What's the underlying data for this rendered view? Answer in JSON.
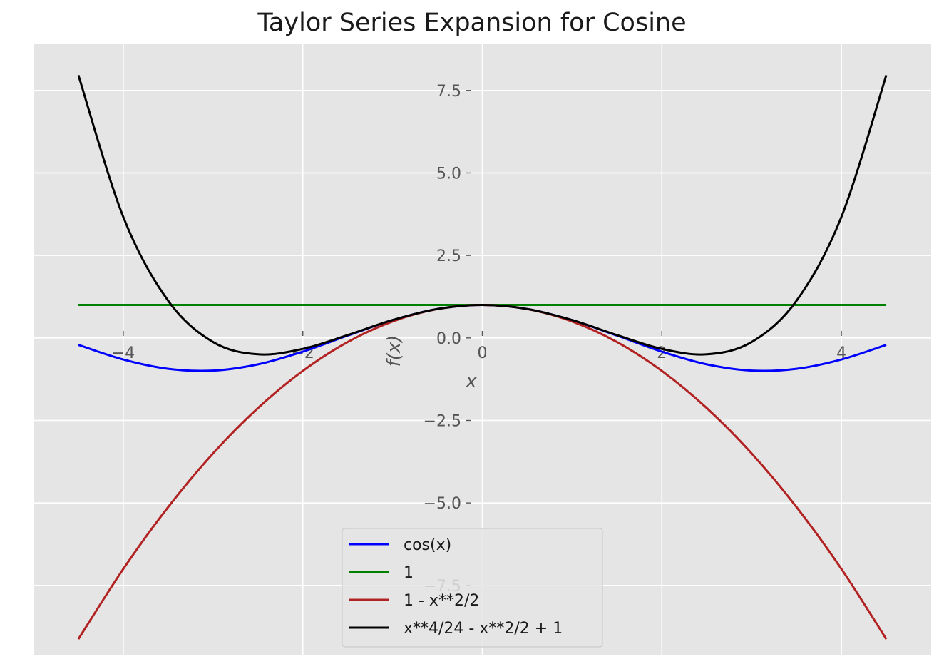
{
  "chart_data": {
    "type": "line",
    "title": "Taylor Series Expansion for Cosine",
    "xlabel": "x",
    "ylabel": "f(x)",
    "xlim": [
      -5.0,
      5.0
    ],
    "ylim": [
      -9.6,
      8.9
    ],
    "x_ticks": [
      {
        "value": -4,
        "label": "−4"
      },
      {
        "value": -2,
        "label": "−2"
      },
      {
        "value": 0,
        "label": "0"
      },
      {
        "value": 2,
        "label": "2"
      },
      {
        "value": 4,
        "label": "4"
      }
    ],
    "y_ticks": [
      {
        "value": 7.5,
        "label": "7.5"
      },
      {
        "value": 5.0,
        "label": "5.0"
      },
      {
        "value": 2.5,
        "label": "2.5"
      },
      {
        "value": 0.0,
        "label": "0.0"
      },
      {
        "value": -2.5,
        "label": "−2.5"
      },
      {
        "value": -5.0,
        "label": "−5.0"
      },
      {
        "value": -7.5,
        "label": "−7.5"
      }
    ],
    "grid": true,
    "legend_position": "bottom-center",
    "x": [
      -4.5,
      -4.0,
      -3.5,
      -3.0,
      -2.5,
      -2.0,
      -1.5,
      -1.0,
      -0.5,
      0.0,
      0.5,
      1.0,
      1.5,
      2.0,
      2.5,
      3.0,
      3.5,
      4.0,
      4.5
    ],
    "series": [
      {
        "name": "cos(x)",
        "color": "#0000ff",
        "values": [
          -0.211,
          -0.654,
          -0.936,
          -0.99,
          -0.801,
          -0.416,
          0.071,
          0.54,
          0.878,
          1.0,
          0.878,
          0.54,
          0.071,
          -0.416,
          -0.801,
          -0.99,
          -0.936,
          -0.654,
          -0.211
        ]
      },
      {
        "name": "1",
        "color": "#008000",
        "values": [
          1,
          1,
          1,
          1,
          1,
          1,
          1,
          1,
          1,
          1,
          1,
          1,
          1,
          1,
          1,
          1,
          1,
          1,
          1
        ]
      },
      {
        "name": "1 - x**2/2",
        "color": "#b22222",
        "values": [
          -9.125,
          -7.0,
          -5.125,
          -3.5,
          -2.125,
          -1.0,
          -0.125,
          0.5,
          0.875,
          1.0,
          0.875,
          0.5,
          -0.125,
          -1.0,
          -2.125,
          -3.5,
          -5.125,
          -7.0,
          -9.125
        ]
      },
      {
        "name": "x**4/24 - x**2/2 + 1",
        "color": "#000000",
        "values": [
          7.961,
          3.667,
          1.128,
          -0.125,
          -0.497,
          -0.333,
          0.086,
          0.542,
          0.878,
          1.0,
          0.878,
          0.542,
          0.086,
          -0.333,
          -0.497,
          -0.125,
          1.128,
          3.667,
          7.961
        ]
      }
    ]
  }
}
